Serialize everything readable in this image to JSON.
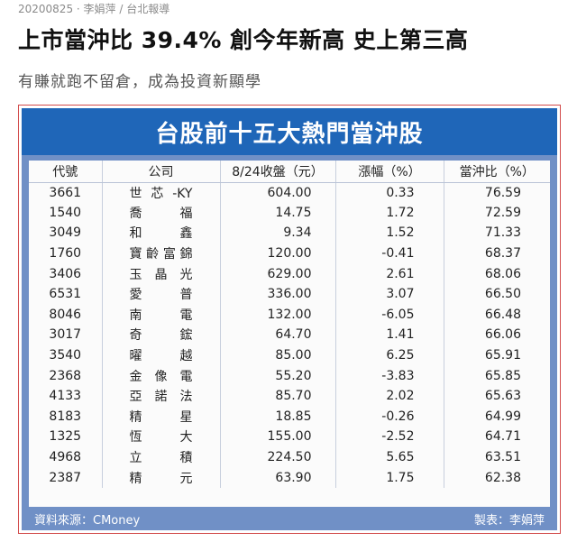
{
  "article": {
    "date": "20200825",
    "author": "李娟萍",
    "outlet": "台北報導",
    "headline": "上市當沖比 39.4% 創今年新高 史上第三高",
    "subhead": "有賺就跑不留倉，成為投資新顯學"
  },
  "figure": {
    "title": "台股前十五大熱門當沖股",
    "headers": [
      "代號",
      "公司",
      "8/24收盤（元）",
      "漲幅（%）",
      "當沖比（%）"
    ],
    "rows": [
      {
        "code": "3661",
        "name": "世芯-KY",
        "close": "604.00",
        "change": "0.33",
        "ratio": "76.59"
      },
      {
        "code": "1540",
        "name": "喬福",
        "close": "14.75",
        "change": "1.72",
        "ratio": "72.59"
      },
      {
        "code": "3049",
        "name": "和鑫",
        "close": "9.34",
        "change": "1.52",
        "ratio": "71.33"
      },
      {
        "code": "1760",
        "name": "寶齡富錦",
        "close": "120.00",
        "change": "-0.41",
        "ratio": "68.37"
      },
      {
        "code": "3406",
        "name": "玉晶光",
        "close": "629.00",
        "change": "2.61",
        "ratio": "68.06"
      },
      {
        "code": "6531",
        "name": "愛普",
        "close": "336.00",
        "change": "3.07",
        "ratio": "66.50"
      },
      {
        "code": "8046",
        "name": "南電",
        "close": "132.00",
        "change": "-6.05",
        "ratio": "66.48"
      },
      {
        "code": "3017",
        "name": "奇鋐",
        "close": "64.70",
        "change": "1.41",
        "ratio": "66.06"
      },
      {
        "code": "3540",
        "name": "曜越",
        "close": "85.00",
        "change": "6.25",
        "ratio": "65.91"
      },
      {
        "code": "2368",
        "name": "金像電",
        "close": "55.20",
        "change": "-3.83",
        "ratio": "65.85"
      },
      {
        "code": "4133",
        "name": "亞諾法",
        "close": "85.70",
        "change": "2.02",
        "ratio": "65.63"
      },
      {
        "code": "8183",
        "name": "精星",
        "close": "18.85",
        "change": "-0.26",
        "ratio": "64.99"
      },
      {
        "code": "1325",
        "name": "恆大",
        "close": "155.00",
        "change": "-2.52",
        "ratio": "64.71"
      },
      {
        "code": "4968",
        "name": "立積",
        "close": "224.50",
        "change": "5.65",
        "ratio": "63.51"
      },
      {
        "code": "2387",
        "name": "精元",
        "close": "63.90",
        "change": "1.75",
        "ratio": "62.38"
      }
    ],
    "source": "資料來源：CMoney",
    "maker": "製表：李娟萍"
  }
}
